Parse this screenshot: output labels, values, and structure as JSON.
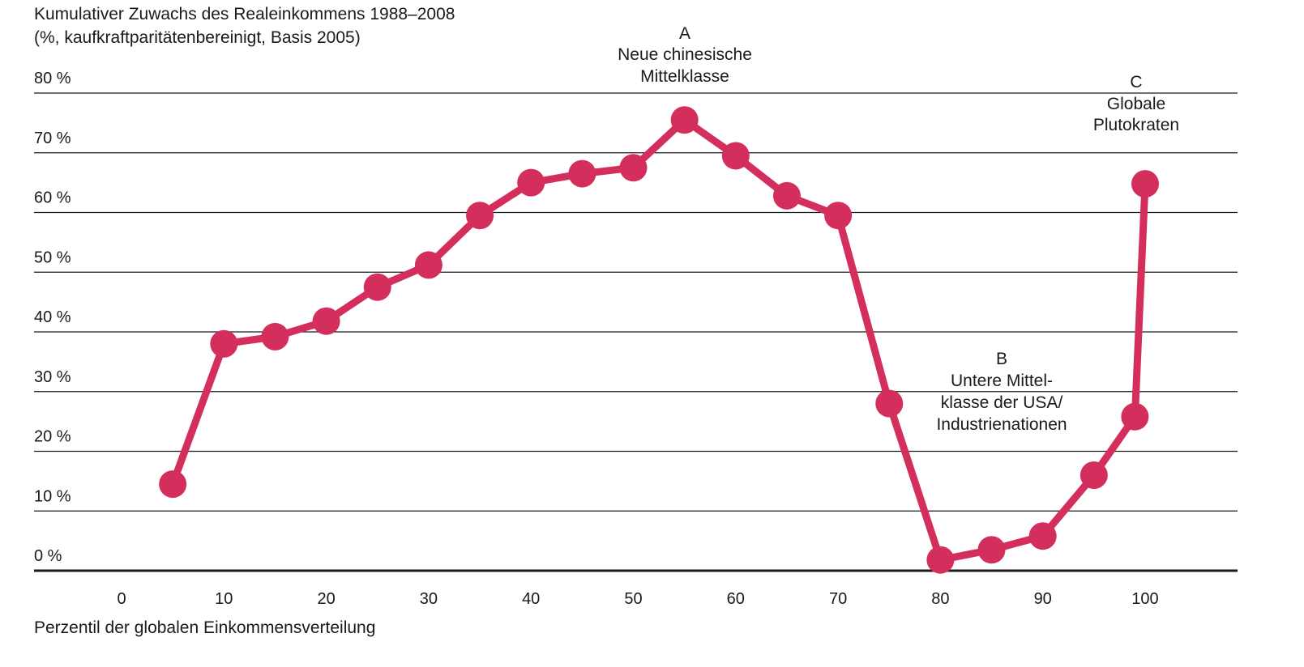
{
  "chart_data": {
    "type": "line",
    "title": "Kumulativer Zuwachs des Realeinkommens 1988–2008",
    "subtitle": "(%, kaufkraftparitätenbereinigt, Basis 2005)",
    "xlabel": "Perzentil der globalen Einkommensverteilung",
    "ylabel": "",
    "xlim": [
      -7,
      110
    ],
    "ylim": [
      0,
      80
    ],
    "x_ticks": [
      0,
      10,
      20,
      30,
      40,
      50,
      60,
      70,
      80,
      90,
      100
    ],
    "y_ticks": [
      0,
      10,
      20,
      30,
      40,
      50,
      60,
      70,
      80
    ],
    "y_tick_labels": [
      "0 %",
      "10 %",
      "20 %",
      "30 %",
      "40 %",
      "50 %",
      "60 %",
      "70 %",
      "80 %"
    ],
    "grid": true,
    "color": "#d42e5c",
    "series": [
      {
        "x": [
          5,
          10,
          15,
          20,
          25,
          30,
          35,
          40,
          45,
          50,
          55,
          60,
          65,
          70,
          75,
          80,
          85,
          90,
          95,
          99,
          100
        ],
        "y": [
          14.5,
          38,
          39.2,
          41.8,
          47.5,
          51.2,
          59.5,
          65,
          66.5,
          67.5,
          75.5,
          69.5,
          62.8,
          59.5,
          28,
          1.8,
          3.5,
          5.8,
          16,
          25.8,
          64.8
        ]
      }
    ],
    "annotations": [
      {
        "letter": "A",
        "lines": [
          "Neue chinesische",
          "Mittelklasse"
        ]
      },
      {
        "letter": "B",
        "lines": [
          "Untere Mittel-",
          "klasse der USA/",
          "Industrienationen"
        ]
      },
      {
        "letter": "C",
        "lines": [
          "Globale",
          "Plutokraten"
        ]
      }
    ]
  }
}
